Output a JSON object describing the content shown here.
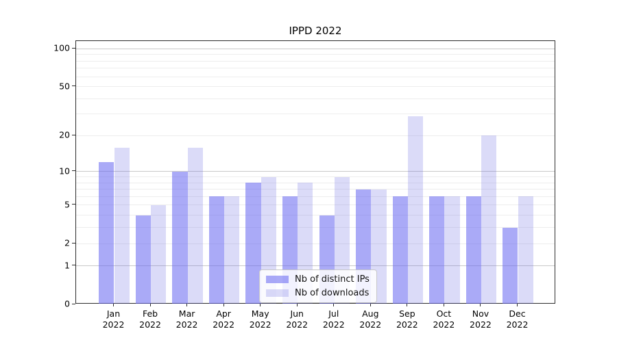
{
  "chart_data": {
    "type": "bar",
    "title": "IPPD 2022",
    "categories": [
      "Jan",
      "Feb",
      "Mar",
      "Apr",
      "May",
      "Jun",
      "Jul",
      "Aug",
      "Sep",
      "Oct",
      "Nov",
      "Dec"
    ],
    "category_year": "2022",
    "series": [
      {
        "name": "Nb of distinct IPs",
        "color": "rgba(100,100,240,0.55)",
        "values": [
          12,
          4,
          10,
          6,
          8,
          6,
          4,
          7,
          6,
          6,
          6,
          3
        ]
      },
      {
        "name": "Nb of downloads",
        "color": "rgba(90,90,225,0.22)",
        "values": [
          16,
          5,
          16,
          6,
          9,
          8,
          9,
          7,
          29,
          6,
          20,
          6
        ]
      }
    ],
    "yscale": "log1p",
    "ylim": [
      0,
      115
    ],
    "yticks": [
      0,
      1,
      2,
      5,
      10,
      20,
      50,
      100
    ],
    "grid_minor": [
      2,
      3,
      4,
      5,
      6,
      7,
      8,
      9,
      20,
      30,
      40,
      50,
      60,
      70,
      80,
      90
    ],
    "grid_major": [
      1,
      10,
      100
    ],
    "xlabel": "",
    "ylabel": "",
    "grid": "on",
    "legend_position": "lower-center"
  }
}
